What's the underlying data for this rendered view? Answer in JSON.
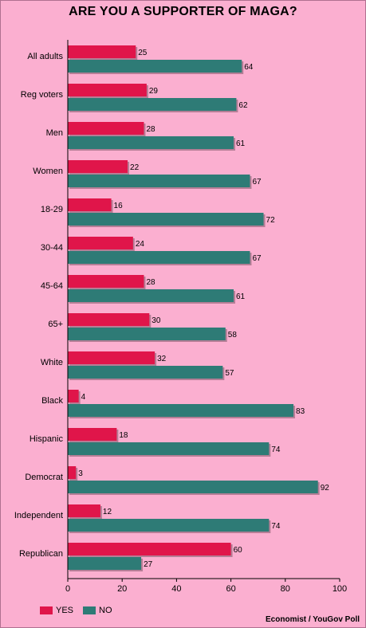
{
  "chart_data": {
    "type": "bar",
    "orientation": "horizontal",
    "title": "ARE YOU A SUPPORTER OF MAGA?",
    "categories": [
      "All adults",
      "Reg voters",
      "Men",
      "Women",
      "18-29",
      "30-44",
      "45-64",
      "65+",
      "White",
      "Black",
      "Hispanic",
      "Democrat",
      "Independent",
      "Republican"
    ],
    "series": [
      {
        "name": "YES",
        "color": "#e0154a",
        "values": [
          25,
          29,
          28,
          22,
          16,
          24,
          28,
          30,
          32,
          4,
          18,
          3,
          12,
          60
        ]
      },
      {
        "name": "NO",
        "color": "#2e7b76",
        "values": [
          64,
          62,
          61,
          67,
          72,
          67,
          61,
          58,
          57,
          83,
          74,
          92,
          74,
          27
        ]
      }
    ],
    "xlim": [
      0,
      100
    ],
    "xticks": [
      0,
      20,
      40,
      60,
      80,
      100
    ],
    "grid": false,
    "legend_position": "bottom-left",
    "source": "Economist / YouGov Poll"
  }
}
